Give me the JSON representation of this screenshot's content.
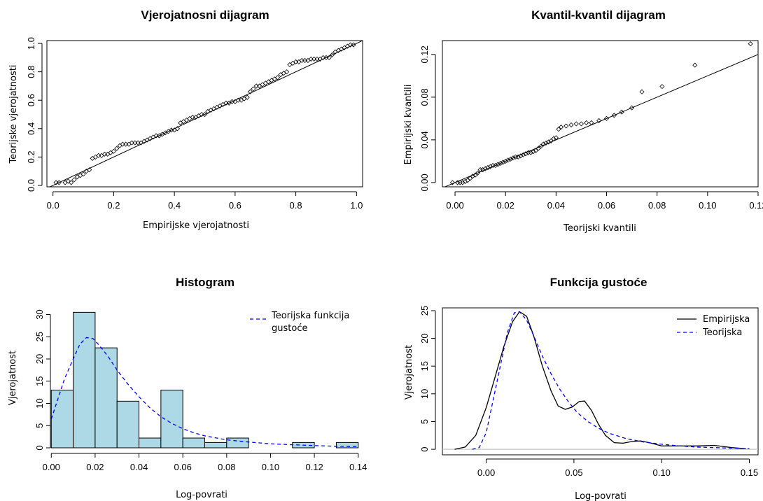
{
  "chart_data": [
    {
      "id": "pp",
      "type": "scatter",
      "title": "Vjerojatnosni dijagram",
      "xlabel": "Empirijske vjerojatnosti",
      "ylabel": "Teorijske vjerojatnosti",
      "xlim": [
        -0.02,
        1.02
      ],
      "ylim": [
        -0.01,
        1.02
      ],
      "xticks": [
        "0.0",
        "0.2",
        "0.4",
        "0.6",
        "0.8",
        "1.0"
      ],
      "yticks": [
        "0.0",
        "0.2",
        "0.4",
        "0.6",
        "0.8",
        "1.0"
      ],
      "reference_line": {
        "slope": 1,
        "intercept": 0
      },
      "points": [
        [
          0.01,
          0.02
        ],
        [
          0.02,
          0.02
        ],
        [
          0.04,
          0.02
        ],
        [
          0.05,
          0.03
        ],
        [
          0.06,
          0.02
        ],
        [
          0.07,
          0.04
        ],
        [
          0.08,
          0.06
        ],
        [
          0.09,
          0.07
        ],
        [
          0.1,
          0.08
        ],
        [
          0.11,
          0.1
        ],
        [
          0.12,
          0.11
        ],
        [
          0.13,
          0.19
        ],
        [
          0.14,
          0.2
        ],
        [
          0.15,
          0.21
        ],
        [
          0.16,
          0.21
        ],
        [
          0.17,
          0.22
        ],
        [
          0.18,
          0.22
        ],
        [
          0.19,
          0.23
        ],
        [
          0.2,
          0.24
        ],
        [
          0.21,
          0.26
        ],
        [
          0.22,
          0.28
        ],
        [
          0.23,
          0.29
        ],
        [
          0.24,
          0.29
        ],
        [
          0.25,
          0.29
        ],
        [
          0.26,
          0.3
        ],
        [
          0.27,
          0.3
        ],
        [
          0.28,
          0.3
        ],
        [
          0.29,
          0.3
        ],
        [
          0.3,
          0.31
        ],
        [
          0.31,
          0.32
        ],
        [
          0.32,
          0.33
        ],
        [
          0.33,
          0.34
        ],
        [
          0.34,
          0.35
        ],
        [
          0.35,
          0.35
        ],
        [
          0.36,
          0.36
        ],
        [
          0.37,
          0.37
        ],
        [
          0.38,
          0.38
        ],
        [
          0.39,
          0.39
        ],
        [
          0.4,
          0.39
        ],
        [
          0.41,
          0.4
        ],
        [
          0.42,
          0.44
        ],
        [
          0.43,
          0.45
        ],
        [
          0.44,
          0.46
        ],
        [
          0.45,
          0.47
        ],
        [
          0.46,
          0.48
        ],
        [
          0.47,
          0.48
        ],
        [
          0.48,
          0.49
        ],
        [
          0.49,
          0.5
        ],
        [
          0.5,
          0.5
        ],
        [
          0.51,
          0.52
        ],
        [
          0.52,
          0.53
        ],
        [
          0.53,
          0.54
        ],
        [
          0.54,
          0.55
        ],
        [
          0.55,
          0.56
        ],
        [
          0.56,
          0.57
        ],
        [
          0.57,
          0.58
        ],
        [
          0.58,
          0.58
        ],
        [
          0.59,
          0.59
        ],
        [
          0.6,
          0.59
        ],
        [
          0.61,
          0.6
        ],
        [
          0.62,
          0.6
        ],
        [
          0.63,
          0.61
        ],
        [
          0.64,
          0.62
        ],
        [
          0.65,
          0.66
        ],
        [
          0.66,
          0.68
        ],
        [
          0.67,
          0.7
        ],
        [
          0.68,
          0.7
        ],
        [
          0.69,
          0.71
        ],
        [
          0.7,
          0.72
        ],
        [
          0.71,
          0.73
        ],
        [
          0.72,
          0.74
        ],
        [
          0.73,
          0.75
        ],
        [
          0.74,
          0.76
        ],
        [
          0.75,
          0.78
        ],
        [
          0.76,
          0.79
        ],
        [
          0.77,
          0.8
        ],
        [
          0.78,
          0.85
        ],
        [
          0.79,
          0.86
        ],
        [
          0.8,
          0.87
        ],
        [
          0.81,
          0.87
        ],
        [
          0.82,
          0.88
        ],
        [
          0.83,
          0.88
        ],
        [
          0.84,
          0.88
        ],
        [
          0.85,
          0.89
        ],
        [
          0.86,
          0.89
        ],
        [
          0.87,
          0.89
        ],
        [
          0.88,
          0.89
        ],
        [
          0.89,
          0.9
        ],
        [
          0.9,
          0.9
        ],
        [
          0.91,
          0.9
        ],
        [
          0.92,
          0.92
        ],
        [
          0.93,
          0.94
        ],
        [
          0.94,
          0.95
        ],
        [
          0.95,
          0.96
        ],
        [
          0.96,
          0.97
        ],
        [
          0.97,
          0.98
        ],
        [
          0.98,
          0.99
        ],
        [
          0.99,
          0.99
        ]
      ]
    },
    {
      "id": "qq",
      "type": "scatter",
      "title": "Kvantil-kvantil dijagram",
      "xlabel": "Teorijski kvantili",
      "ylabel": "Empirijski kvantili",
      "xlim": [
        -0.005,
        0.12
      ],
      "ylim": [
        -0.004,
        0.133
      ],
      "xticks": [
        "0.00",
        "0.02",
        "0.04",
        "0.06",
        "0.08",
        "0.10",
        "0.12"
      ],
      "yticks": [
        "0.00",
        "0.04",
        "0.08",
        "0.12"
      ],
      "reference_line": {
        "slope": 1,
        "intercept": 0
      },
      "points": [
        [
          -0.001,
          0.0
        ],
        [
          0.001,
          0.0
        ],
        [
          0.002,
          0.0
        ],
        [
          0.003,
          0.0
        ],
        [
          0.004,
          0.001
        ],
        [
          0.005,
          0.002
        ],
        [
          0.006,
          0.004
        ],
        [
          0.007,
          0.006
        ],
        [
          0.008,
          0.007
        ],
        [
          0.009,
          0.009
        ],
        [
          0.01,
          0.012
        ],
        [
          0.011,
          0.012
        ],
        [
          0.012,
          0.013
        ],
        [
          0.013,
          0.014
        ],
        [
          0.014,
          0.015
        ],
        [
          0.015,
          0.016
        ],
        [
          0.016,
          0.016
        ],
        [
          0.017,
          0.017
        ],
        [
          0.018,
          0.018
        ],
        [
          0.019,
          0.019
        ],
        [
          0.02,
          0.02
        ],
        [
          0.021,
          0.021
        ],
        [
          0.022,
          0.022
        ],
        [
          0.023,
          0.023
        ],
        [
          0.024,
          0.024
        ],
        [
          0.025,
          0.024
        ],
        [
          0.026,
          0.025
        ],
        [
          0.027,
          0.026
        ],
        [
          0.028,
          0.027
        ],
        [
          0.029,
          0.028
        ],
        [
          0.03,
          0.028
        ],
        [
          0.031,
          0.029
        ],
        [
          0.032,
          0.03
        ],
        [
          0.033,
          0.032
        ],
        [
          0.034,
          0.034
        ],
        [
          0.035,
          0.036
        ],
        [
          0.036,
          0.037
        ],
        [
          0.037,
          0.038
        ],
        [
          0.038,
          0.039
        ],
        [
          0.039,
          0.041
        ],
        [
          0.04,
          0.042
        ],
        [
          0.041,
          0.05
        ],
        [
          0.042,
          0.052
        ],
        [
          0.044,
          0.053
        ],
        [
          0.046,
          0.054
        ],
        [
          0.048,
          0.055
        ],
        [
          0.05,
          0.055
        ],
        [
          0.052,
          0.056
        ],
        [
          0.054,
          0.056
        ],
        [
          0.057,
          0.058
        ],
        [
          0.06,
          0.06
        ],
        [
          0.063,
          0.063
        ],
        [
          0.066,
          0.066
        ],
        [
          0.07,
          0.07
        ],
        [
          0.074,
          0.085
        ],
        [
          0.082,
          0.09
        ],
        [
          0.095,
          0.11
        ],
        [
          0.117,
          0.13
        ]
      ]
    },
    {
      "id": "hist",
      "type": "bar",
      "title": "Histogram",
      "xlabel": "Log-povrati",
      "ylabel": "Vjerojatnost",
      "xlim": [
        -0.002,
        0.142
      ],
      "ylim": [
        0,
        31.5
      ],
      "xticks": [
        "0.00",
        "0.02",
        "0.04",
        "0.06",
        "0.08",
        "0.10",
        "0.12",
        "0.14"
      ],
      "yticks": [
        "0",
        "5",
        "10",
        "15",
        "20",
        "25",
        "30"
      ],
      "bins": [
        [
          0.0,
          0.01,
          13
        ],
        [
          0.01,
          0.02,
          30.5
        ],
        [
          0.02,
          0.03,
          22.5
        ],
        [
          0.03,
          0.04,
          10.5
        ],
        [
          0.04,
          0.05,
          2.2
        ],
        [
          0.05,
          0.06,
          13
        ],
        [
          0.06,
          0.07,
          2.2
        ],
        [
          0.07,
          0.08,
          1.2
        ],
        [
          0.08,
          0.09,
          2.2
        ],
        [
          0.09,
          0.1,
          0
        ],
        [
          0.1,
          0.11,
          0
        ],
        [
          0.11,
          0.12,
          1.2
        ],
        [
          0.12,
          0.13,
          0
        ],
        [
          0.13,
          0.14,
          1.2
        ]
      ],
      "bar_color": "#add8e6",
      "series": [
        {
          "name": "Teorijska funkcija gustoće",
          "color": "#0000ff",
          "style": "dashed",
          "points": [
            [
              0.0,
              6.5
            ],
            [
              0.003,
              11
            ],
            [
              0.006,
              15.5
            ],
            [
              0.01,
              20
            ],
            [
              0.013,
              23.3
            ],
            [
              0.016,
              24.8
            ],
            [
              0.019,
              24.6
            ],
            [
              0.022,
              23
            ],
            [
              0.026,
              20.5
            ],
            [
              0.03,
              17.5
            ],
            [
              0.035,
              14.3
            ],
            [
              0.04,
              11.5
            ],
            [
              0.045,
              9
            ],
            [
              0.05,
              7
            ],
            [
              0.055,
              5.5
            ],
            [
              0.06,
              4.3
            ],
            [
              0.065,
              3.4
            ],
            [
              0.07,
              2.7
            ],
            [
              0.08,
              1.8
            ],
            [
              0.09,
              1.3
            ],
            [
              0.1,
              0.9
            ],
            [
              0.11,
              0.7
            ],
            [
              0.12,
              0.5
            ],
            [
              0.13,
              0.35
            ],
            [
              0.14,
              0.25
            ]
          ]
        }
      ],
      "legend_labels": [
        "Teorijska funkcija",
        "gustoće"
      ],
      "legend_position": "top-right"
    },
    {
      "id": "dens",
      "type": "line",
      "title": "Funkcija gustoće",
      "xlabel": "Log-povrati",
      "ylabel": "Vjerojatnost",
      "xlim": [
        -0.025,
        0.155
      ],
      "ylim": [
        -1,
        25.5
      ],
      "xticks": [
        "0.00",
        "0.05",
        "0.10",
        "0.15"
      ],
      "yticks": [
        "0",
        "5",
        "10",
        "15",
        "20",
        "25"
      ],
      "baseline_color": "#bebebe",
      "series": [
        {
          "name": "Empirijska",
          "color": "#000000",
          "style": "solid",
          "points": [
            [
              -0.018,
              0
            ],
            [
              -0.012,
              0.4
            ],
            [
              -0.006,
              2.5
            ],
            [
              0.0,
              7.5
            ],
            [
              0.005,
              13
            ],
            [
              0.01,
              18.5
            ],
            [
              0.015,
              23
            ],
            [
              0.019,
              24.8
            ],
            [
              0.023,
              24
            ],
            [
              0.027,
              20.5
            ],
            [
              0.032,
              15
            ],
            [
              0.037,
              10.5
            ],
            [
              0.041,
              7.8
            ],
            [
              0.045,
              7.2
            ],
            [
              0.049,
              7.6
            ],
            [
              0.053,
              8.6
            ],
            [
              0.056,
              8.7
            ],
            [
              0.06,
              7
            ],
            [
              0.064,
              4.5
            ],
            [
              0.068,
              2.5
            ],
            [
              0.073,
              1.2
            ],
            [
              0.078,
              1.1
            ],
            [
              0.083,
              1.4
            ],
            [
              0.088,
              1.5
            ],
            [
              0.093,
              1.2
            ],
            [
              0.1,
              0.6
            ],
            [
              0.11,
              0.6
            ],
            [
              0.12,
              0.6
            ],
            [
              0.13,
              0.7
            ],
            [
              0.14,
              0.3
            ],
            [
              0.148,
              0.1
            ]
          ]
        },
        {
          "name": "Teorijska",
          "color": "#0000ff",
          "style": "dashed",
          "points": [
            [
              -0.008,
              0
            ],
            [
              -0.004,
              0.3
            ],
            [
              0.0,
              3
            ],
            [
              0.004,
              9
            ],
            [
              0.008,
              15
            ],
            [
              0.012,
              21
            ],
            [
              0.016,
              24.6
            ],
            [
              0.019,
              24.8
            ],
            [
              0.023,
              23.3
            ],
            [
              0.027,
              20.5
            ],
            [
              0.032,
              16.8
            ],
            [
              0.037,
              13.6
            ],
            [
              0.042,
              10.8
            ],
            [
              0.047,
              8.5
            ],
            [
              0.052,
              6.6
            ],
            [
              0.058,
              5
            ],
            [
              0.064,
              3.8
            ],
            [
              0.07,
              2.9
            ],
            [
              0.08,
              1.9
            ],
            [
              0.09,
              1.3
            ],
            [
              0.1,
              0.9
            ],
            [
              0.11,
              0.6
            ],
            [
              0.12,
              0.4
            ],
            [
              0.13,
              0.3
            ],
            [
              0.14,
              0.2
            ],
            [
              0.15,
              0.1
            ]
          ]
        }
      ],
      "legend_position": "top-right"
    }
  ]
}
